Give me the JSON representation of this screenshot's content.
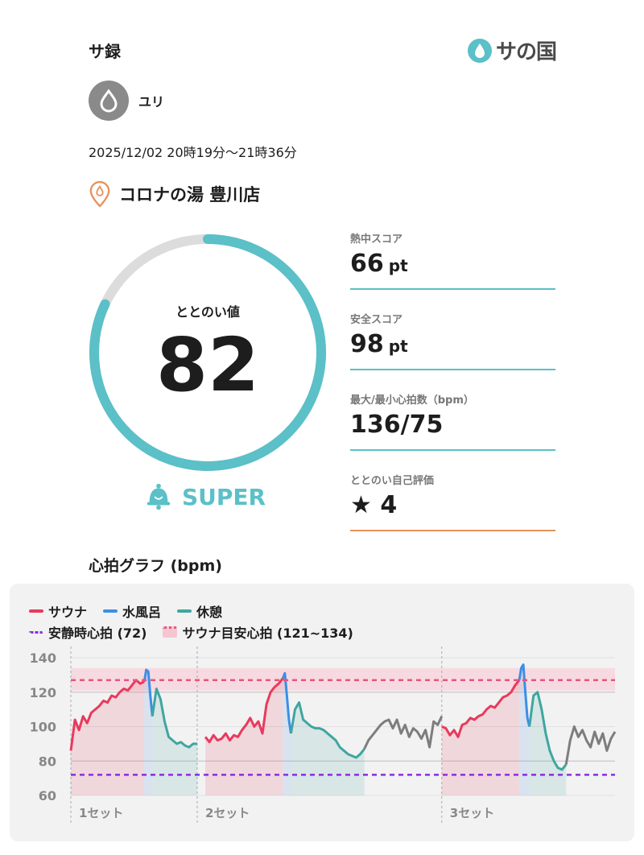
{
  "header": {
    "app_title": "サ録",
    "brand": "サの国"
  },
  "user": {
    "name": "ユリ"
  },
  "session": {
    "datetime": "2025/12/02 20時19分〜21時36分",
    "facility": "コロナの湯 豊川店"
  },
  "score": {
    "label": "ととのい値",
    "value": "82",
    "ratio": 0.82,
    "rank": "SUPER"
  },
  "metrics": [
    {
      "label": "熱中スコア",
      "value": "66",
      "unit": "pt"
    },
    {
      "label": "安全スコア",
      "value": "98",
      "unit": "pt"
    },
    {
      "label": "最大/最小心拍数（bpm）",
      "value": "136/75",
      "unit": ""
    },
    {
      "label": "ととのい自己評価",
      "value": "★ 4",
      "unit": ""
    }
  ],
  "graph": {
    "title": "心拍グラフ (bpm)",
    "legend": [
      {
        "label": "サウナ",
        "color": "#e83a5c",
        "style": "solid"
      },
      {
        "label": "水風呂",
        "color": "#3d8ee6",
        "style": "solid"
      },
      {
        "label": "休憩",
        "color": "#3fa6a0",
        "style": "solid"
      },
      {
        "label": "安静時心拍 (72)",
        "color": "#8a2be2",
        "style": "dotted"
      },
      {
        "label": "サウナ目安心拍 (121~134)",
        "color": "#e8557a",
        "style": "dotted"
      }
    ]
  },
  "chart_data": {
    "type": "line",
    "ylim": [
      60,
      140
    ],
    "yticks": [
      140,
      120,
      100,
      80,
      60
    ],
    "resting_hr": 72,
    "target_band": [
      121,
      134
    ],
    "set_labels": [
      "1セット",
      "2セット",
      "3セット"
    ],
    "series": [
      {
        "name": "サウナ",
        "x": [
          0,
          2,
          4,
          6,
          8,
          10,
          12,
          14,
          16,
          18,
          20,
          22,
          24,
          26,
          28,
          30,
          32,
          34,
          36
        ],
        "values": [
          86,
          104,
          98,
          106,
          102,
          108,
          110,
          112,
          115,
          114,
          118,
          117,
          120,
          122,
          121,
          124,
          127,
          125,
          126
        ]
      },
      {
        "name": "水風呂",
        "x": [
          36,
          37,
          38,
          39,
          40
        ],
        "values": [
          126,
          133,
          132,
          118,
          106
        ]
      },
      {
        "name": "休憩",
        "x": [
          40,
          42,
          44,
          46,
          48,
          50,
          52,
          54,
          56,
          58,
          60,
          62
        ],
        "values": [
          106,
          122,
          116,
          103,
          94,
          92,
          90,
          91,
          89,
          88,
          90,
          90
        ]
      },
      {
        "name": "サウナ",
        "x": [
          66,
          68,
          70,
          72,
          74,
          76,
          78,
          80,
          82,
          84,
          86,
          88,
          90,
          92,
          94,
          96,
          98,
          100,
          102,
          104
        ],
        "values": [
          94,
          91,
          95,
          92,
          93,
          96,
          92,
          95,
          94,
          98,
          101,
          105,
          100,
          103,
          96,
          113,
          120,
          123,
          125,
          128
        ]
      },
      {
        "name": "水風呂",
        "x": [
          104,
          105,
          106,
          107,
          108
        ],
        "values": [
          128,
          131,
          118,
          104,
          96
        ]
      },
      {
        "name": "休憩",
        "x": [
          108,
          110,
          112,
          114,
          116,
          118,
          120,
          122,
          124,
          126,
          128,
          130,
          132,
          134,
          136,
          138,
          140,
          142,
          144
        ],
        "values": [
          96,
          110,
          114,
          104,
          102,
          100,
          99,
          99,
          98,
          96,
          94,
          92,
          88,
          86,
          84,
          83,
          82,
          84,
          87
        ]
      },
      {
        "name": "",
        "x": [
          144,
          146,
          148,
          150,
          152,
          154,
          156,
          158,
          160,
          162,
          164,
          166,
          168,
          170,
          172,
          174,
          176,
          178,
          180,
          182
        ],
        "values": [
          87,
          92,
          95,
          98,
          101,
          103,
          104,
          99,
          104,
          96,
          101,
          94,
          99,
          97,
          93,
          98,
          88,
          103,
          101,
          106
        ]
      },
      {
        "name": "サウナ",
        "x": [
          182,
          184,
          186,
          188,
          190,
          192,
          194,
          196,
          198,
          200,
          202,
          204,
          206,
          208,
          210,
          212,
          214,
          216,
          218,
          220
        ],
        "values": [
          100,
          99,
          95,
          98,
          94,
          101,
          102,
          105,
          104,
          106,
          107,
          110,
          112,
          111,
          114,
          117,
          118,
          120,
          124,
          127
        ]
      },
      {
        "name": "水風呂",
        "x": [
          220,
          221,
          222,
          223,
          224,
          225
        ],
        "values": [
          127,
          134,
          136,
          120,
          105,
          100
        ]
      },
      {
        "name": "休憩",
        "x": [
          225,
          227,
          229,
          231,
          233,
          235,
          237,
          239,
          241,
          243
        ],
        "values": [
          100,
          118,
          120,
          110,
          96,
          86,
          80,
          76,
          75,
          78
        ]
      },
      {
        "name": "",
        "x": [
          243,
          245,
          247,
          249,
          251,
          253,
          255,
          257,
          259,
          261,
          263,
          265,
          267
        ],
        "values": [
          78,
          92,
          100,
          94,
          98,
          92,
          88,
          97,
          90,
          96,
          86,
          93,
          97
        ]
      }
    ],
    "set_boundaries": [
      0,
      62,
      182
    ]
  }
}
